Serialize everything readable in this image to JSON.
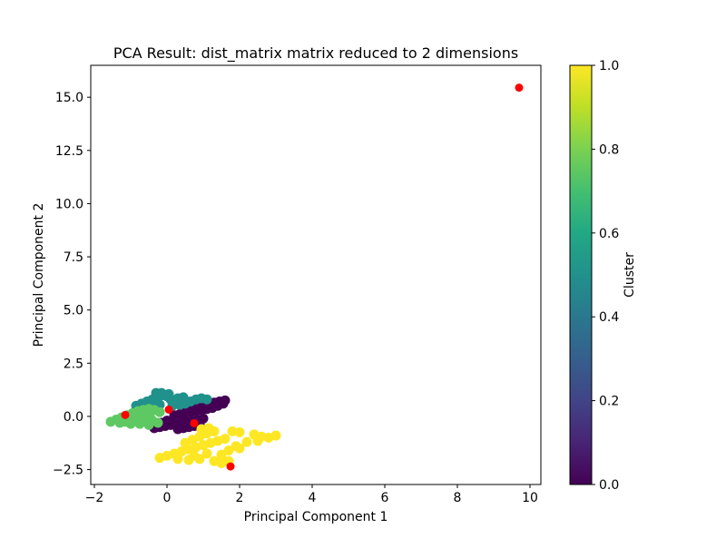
{
  "chart_data": {
    "type": "scatter",
    "title": "PCA Result: dist_matrix matrix reduced to 2 dimensions",
    "xlabel": "Principal Component 1",
    "ylabel": "Principal Component 2",
    "xlim": [
      -2.1,
      10.3
    ],
    "ylim": [
      -3.2,
      16.5
    ],
    "x_ticks": [
      -2,
      0,
      2,
      4,
      6,
      8,
      10
    ],
    "y_ticks": [
      -2.5,
      0.0,
      2.5,
      5.0,
      7.5,
      10.0,
      12.5,
      15.0
    ],
    "x_tick_labels": [
      "−2",
      "0",
      "2",
      "4",
      "6",
      "8",
      "10"
    ],
    "y_tick_labels": [
      "−2.5",
      "0.0",
      "2.5",
      "5.0",
      "7.5",
      "10.0",
      "12.5",
      "15.0"
    ],
    "colorbar": {
      "label": "Cluster",
      "range": [
        0.0,
        1.0
      ],
      "ticks": [
        0.0,
        0.2,
        0.4,
        0.6,
        0.8,
        1.0
      ],
      "tick_labels": [
        "0.0",
        "0.2",
        "0.4",
        "0.6",
        "0.8",
        "1.0"
      ],
      "colormap": "viridis"
    },
    "clusters": [
      {
        "value": 0.0,
        "color": "#440154",
        "points": [
          [
            -0.35,
            -0.55
          ],
          [
            -0.2,
            -0.5
          ],
          [
            -0.05,
            -0.45
          ],
          [
            0.1,
            -0.4
          ],
          [
            0.25,
            -0.35
          ],
          [
            0.4,
            -0.3
          ],
          [
            0.55,
            -0.25
          ],
          [
            0.7,
            -0.2
          ],
          [
            0.85,
            -0.15
          ],
          [
            1.0,
            -0.1
          ],
          [
            0.3,
            -0.6
          ],
          [
            0.45,
            -0.55
          ],
          [
            0.6,
            -0.5
          ],
          [
            0.75,
            -0.45
          ],
          [
            0.9,
            -0.4
          ],
          [
            0.2,
            0.05
          ],
          [
            0.35,
            0.1
          ],
          [
            0.5,
            0.15
          ],
          [
            0.65,
            0.2
          ],
          [
            0.8,
            0.25
          ],
          [
            0.95,
            0.3
          ],
          [
            1.1,
            0.35
          ],
          [
            1.25,
            0.4
          ],
          [
            1.4,
            0.5
          ],
          [
            1.55,
            0.6
          ],
          [
            1.6,
            0.75
          ],
          [
            1.45,
            0.7
          ],
          [
            1.3,
            0.65
          ],
          [
            1.15,
            0.55
          ],
          [
            0.0,
            -0.2
          ],
          [
            -0.15,
            -0.3
          ],
          [
            0.55,
            0.45
          ],
          [
            0.7,
            0.6
          ],
          [
            0.85,
            0.7
          ],
          [
            1.0,
            0.75
          ],
          [
            1.15,
            0.65
          ],
          [
            0.45,
            -0.1
          ],
          [
            0.15,
            -0.25
          ]
        ]
      },
      {
        "value": 0.6,
        "color": "#21918c",
        "points": [
          [
            -0.85,
            0.5
          ],
          [
            -0.7,
            0.6
          ],
          [
            -0.55,
            0.7
          ],
          [
            -0.4,
            0.8
          ],
          [
            -0.25,
            0.9
          ],
          [
            -0.1,
            1.0
          ],
          [
            0.05,
            1.05
          ],
          [
            -0.3,
            1.1
          ],
          [
            -0.15,
            1.1
          ],
          [
            0.0,
            0.95
          ],
          [
            0.1,
            0.8
          ],
          [
            0.2,
            0.65
          ],
          [
            0.35,
            0.55
          ],
          [
            0.5,
            0.6
          ],
          [
            0.65,
            0.7
          ],
          [
            0.8,
            0.8
          ],
          [
            0.95,
            0.85
          ],
          [
            1.1,
            0.8
          ],
          [
            0.3,
            0.85
          ],
          [
            0.45,
            0.9
          ],
          [
            -0.6,
            0.45
          ],
          [
            -0.45,
            0.5
          ],
          [
            -0.2,
            0.55
          ],
          [
            -0.75,
            0.4
          ],
          [
            0.15,
            0.5
          ],
          [
            -0.35,
            0.65
          ]
        ]
      },
      {
        "value": 0.8,
        "color": "#5ec962",
        "points": [
          [
            -1.55,
            -0.25
          ],
          [
            -1.4,
            -0.15
          ],
          [
            -1.25,
            -0.05
          ],
          [
            -1.1,
            0.05
          ],
          [
            -0.95,
            0.15
          ],
          [
            -0.8,
            0.25
          ],
          [
            -0.65,
            0.3
          ],
          [
            -0.5,
            0.35
          ],
          [
            -0.35,
            0.3
          ],
          [
            -0.2,
            0.2
          ],
          [
            -1.3,
            -0.3
          ],
          [
            -1.15,
            -0.25
          ],
          [
            -1.0,
            -0.2
          ],
          [
            -0.85,
            -0.15
          ],
          [
            -0.7,
            -0.1
          ],
          [
            -0.55,
            -0.05
          ],
          [
            -0.4,
            -0.2
          ],
          [
            -0.25,
            -0.3
          ],
          [
            -0.5,
            -0.4
          ],
          [
            -0.75,
            -0.35
          ],
          [
            -1.0,
            -0.35
          ],
          [
            -0.9,
            0.05
          ],
          [
            -0.6,
            0.1
          ],
          [
            -0.45,
            -0.1
          ]
        ]
      },
      {
        "value": 1.0,
        "color": "#fde725",
        "points": [
          [
            -0.2,
            -1.95
          ],
          [
            0.0,
            -1.85
          ],
          [
            0.2,
            -1.75
          ],
          [
            0.4,
            -1.65
          ],
          [
            0.6,
            -1.55
          ],
          [
            0.8,
            -1.45
          ],
          [
            1.0,
            -1.35
          ],
          [
            1.2,
            -1.25
          ],
          [
            1.4,
            -1.15
          ],
          [
            1.6,
            -1.05
          ],
          [
            0.5,
            -1.25
          ],
          [
            0.7,
            -1.1
          ],
          [
            0.9,
            -0.95
          ],
          [
            1.1,
            -0.8
          ],
          [
            1.3,
            -0.7
          ],
          [
            0.95,
            -0.6
          ],
          [
            1.15,
            -0.55
          ],
          [
            1.8,
            -0.7
          ],
          [
            2.0,
            -0.75
          ],
          [
            2.4,
            -0.85
          ],
          [
            2.6,
            -0.95
          ],
          [
            2.8,
            -1.0
          ],
          [
            3.0,
            -0.9
          ],
          [
            2.5,
            -1.15
          ],
          [
            1.9,
            -1.4
          ],
          [
            1.7,
            -1.6
          ],
          [
            1.5,
            -1.8
          ],
          [
            1.3,
            -2.1
          ],
          [
            1.5,
            -2.2
          ],
          [
            1.7,
            -2.1
          ],
          [
            2.0,
            -1.5
          ],
          [
            2.2,
            -1.2
          ],
          [
            0.3,
            -2.0
          ],
          [
            0.6,
            -2.05
          ],
          [
            0.9,
            -2.0
          ],
          [
            1.1,
            -1.75
          ],
          [
            0.75,
            -1.85
          ]
        ]
      }
    ],
    "centroids": {
      "color": "#ff0000",
      "points": [
        [
          -1.15,
          0.07
        ],
        [
          0.05,
          0.32
        ],
        [
          0.75,
          -0.32
        ],
        [
          1.75,
          -2.35
        ],
        [
          9.7,
          15.45
        ]
      ]
    }
  }
}
